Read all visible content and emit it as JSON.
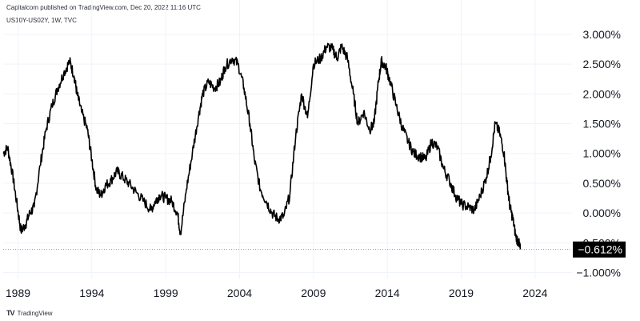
{
  "header": {
    "published": "Capitalcom published on TradingView.com, Dec 20, 2022 11:16 UTC",
    "symbol": "US10Y-US02Y, 1W, TVC"
  },
  "footer": {
    "logo_icon": "tradingview-logo-icon",
    "logo_glyph": "TV",
    "brand": "TradingView"
  },
  "colors": {
    "line": "#000000",
    "grid": "#f0f3fa",
    "axis_text": "#131722",
    "last_bg": "#000000",
    "last_text": "#ffffff",
    "dotted": "#9598a1"
  },
  "chart_data": {
    "type": "line",
    "title": "",
    "xlabel": "",
    "ylabel": "",
    "xlim": [
      1988.0,
      2026.5
    ],
    "ylim": [
      -1.1,
      3.2
    ],
    "x_ticks": [
      {
        "value": 1989,
        "label": "1989"
      },
      {
        "value": 1994,
        "label": "1994"
      },
      {
        "value": 1999,
        "label": "1999"
      },
      {
        "value": 2004,
        "label": "2004"
      },
      {
        "value": 2009,
        "label": "2009"
      },
      {
        "value": 2014,
        "label": "2014"
      },
      {
        "value": 2019,
        "label": "2019"
      },
      {
        "value": 2024,
        "label": "2024"
      }
    ],
    "y_ticks": [
      {
        "value": 3.0,
        "label": "3.000%"
      },
      {
        "value": 2.5,
        "label": "2.500%"
      },
      {
        "value": 2.0,
        "label": "2.000%"
      },
      {
        "value": 1.5,
        "label": "1.500%"
      },
      {
        "value": 1.0,
        "label": "1.000%"
      },
      {
        "value": 0.5,
        "label": "0.500%"
      },
      {
        "value": 0.0,
        "label": "0.000%"
      },
      {
        "value": -0.5,
        "label": "−0.500%"
      },
      {
        "value": -1.0,
        "label": "−1.000%"
      }
    ],
    "grid": true,
    "last_value": {
      "value": -0.612,
      "label": "−0.612%"
    },
    "series": [
      {
        "x": [
          1988.0,
          1988.3,
          1988.6,
          1988.9,
          1989.2,
          1989.5,
          1989.8,
          1990.1,
          1990.5,
          1990.9,
          1991.3,
          1991.7,
          1992.1,
          1992.5,
          1992.8,
          1993.0,
          1993.3,
          1993.7,
          1994.0,
          1994.3,
          1994.6,
          1994.9,
          1995.3,
          1995.7,
          1996.1,
          1996.5,
          1997.0,
          1997.5,
          1998.0,
          1998.3,
          1998.6,
          1999.0,
          1999.4,
          1999.8,
          2000.0,
          2000.4,
          2000.8,
          2001.2,
          2001.5,
          2001.9,
          2002.3,
          2002.7,
          2003.0,
          2003.5,
          2003.9,
          2004.3,
          2004.7,
          2005.0,
          2005.4,
          2005.8,
          2006.2,
          2006.6,
          2007.0,
          2007.4,
          2007.8,
          2008.2,
          2008.6,
          2009.0,
          2009.5,
          2009.9,
          2010.3,
          2010.6,
          2010.9,
          2011.3,
          2011.7,
          2012.0,
          2012.4,
          2012.8,
          2013.1,
          2013.4,
          2013.6,
          2013.9,
          2014.2,
          2014.6,
          2015.0,
          2015.4,
          2015.8,
          2016.2,
          2016.6,
          2017.0,
          2017.4,
          2017.8,
          2018.2,
          2018.6,
          2019.0,
          2019.5,
          2019.9,
          2020.3,
          2020.7,
          2021.0,
          2021.3,
          2021.6,
          2021.9,
          2022.1,
          2022.3,
          2022.5,
          2022.7,
          2022.9,
          2023.0
        ],
        "y": [
          1.0,
          1.1,
          0.7,
          0.2,
          -0.3,
          -0.2,
          0.0,
          0.1,
          0.8,
          1.4,
          1.8,
          2.1,
          2.35,
          2.55,
          2.3,
          2.0,
          1.7,
          1.4,
          0.9,
          0.4,
          0.3,
          0.45,
          0.55,
          0.7,
          0.6,
          0.5,
          0.35,
          0.2,
          0.05,
          0.2,
          0.3,
          0.25,
          0.2,
          0.0,
          -0.35,
          0.4,
          1.0,
          1.6,
          2.0,
          2.2,
          2.1,
          2.2,
          2.45,
          2.6,
          2.5,
          2.1,
          1.5,
          0.9,
          0.4,
          0.2,
          0.0,
          -0.1,
          -0.05,
          0.3,
          1.3,
          2.0,
          1.6,
          2.5,
          2.6,
          2.8,
          2.75,
          2.6,
          2.8,
          2.6,
          2.0,
          1.5,
          1.7,
          1.4,
          1.5,
          2.2,
          2.55,
          2.45,
          2.2,
          1.8,
          1.45,
          1.2,
          1.0,
          0.95,
          0.9,
          1.2,
          1.1,
          0.75,
          0.55,
          0.3,
          0.15,
          0.1,
          0.05,
          0.3,
          0.6,
          0.95,
          1.5,
          1.35,
          1.0,
          0.5,
          0.1,
          -0.1,
          -0.4,
          -0.5,
          -0.61
        ]
      }
    ]
  }
}
